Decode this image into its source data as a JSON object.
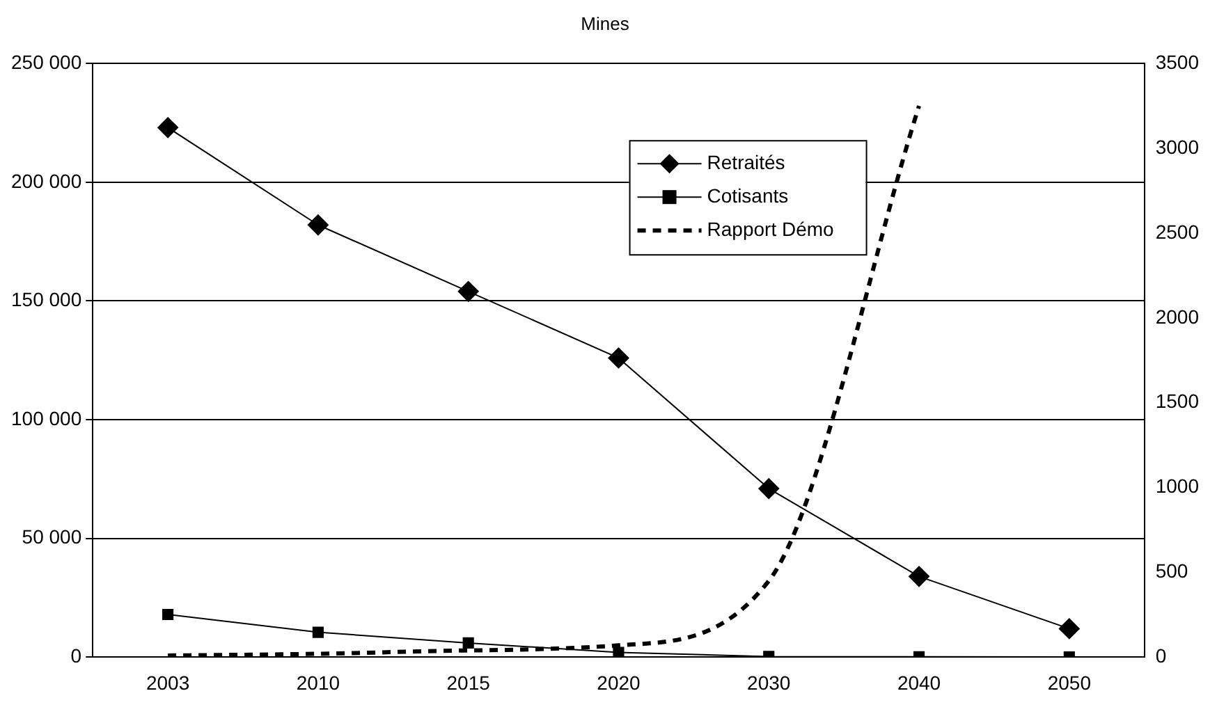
{
  "chart_data": {
    "type": "line",
    "title": "Mines",
    "categories": [
      "2003",
      "2010",
      "2015",
      "2020",
      "2030",
      "2040",
      "2050"
    ],
    "series": [
      {
        "name": "Retraités",
        "color": "#000000",
        "marker": "diamond",
        "line_style": "solid",
        "values": [
          223000,
          182000,
          154000,
          126000,
          71000,
          34000,
          12000
        ]
      },
      {
        "name": "Cotisants",
        "color": "#000000",
        "marker": "square",
        "line_style": "solid",
        "values": [
          18000,
          10500,
          6000,
          2000,
          300,
          200,
          100
        ]
      },
      {
        "name": "Rapport Démo",
        "color": "#000000",
        "marker": "none",
        "line_style": "dashed",
        "axis": "y2",
        "values": [
          10,
          20,
          40,
          70,
          450,
          3250,
          null
        ]
      }
    ],
    "ylim": [
      0,
      250000
    ],
    "yticks": [
      {
        "value": 0,
        "label": "0"
      },
      {
        "value": 50000,
        "label": "50 000"
      },
      {
        "value": 100000,
        "label": "100 000"
      },
      {
        "value": 150000,
        "label": "150 000"
      },
      {
        "value": 200000,
        "label": "200 000"
      },
      {
        "value": 250000,
        "label": "250 000"
      }
    ],
    "y2lim": [
      0,
      3500
    ],
    "y2ticks": [
      0,
      500,
      1000,
      1500,
      2000,
      2500,
      3000,
      3500
    ],
    "grid": "y",
    "legend": "top"
  }
}
